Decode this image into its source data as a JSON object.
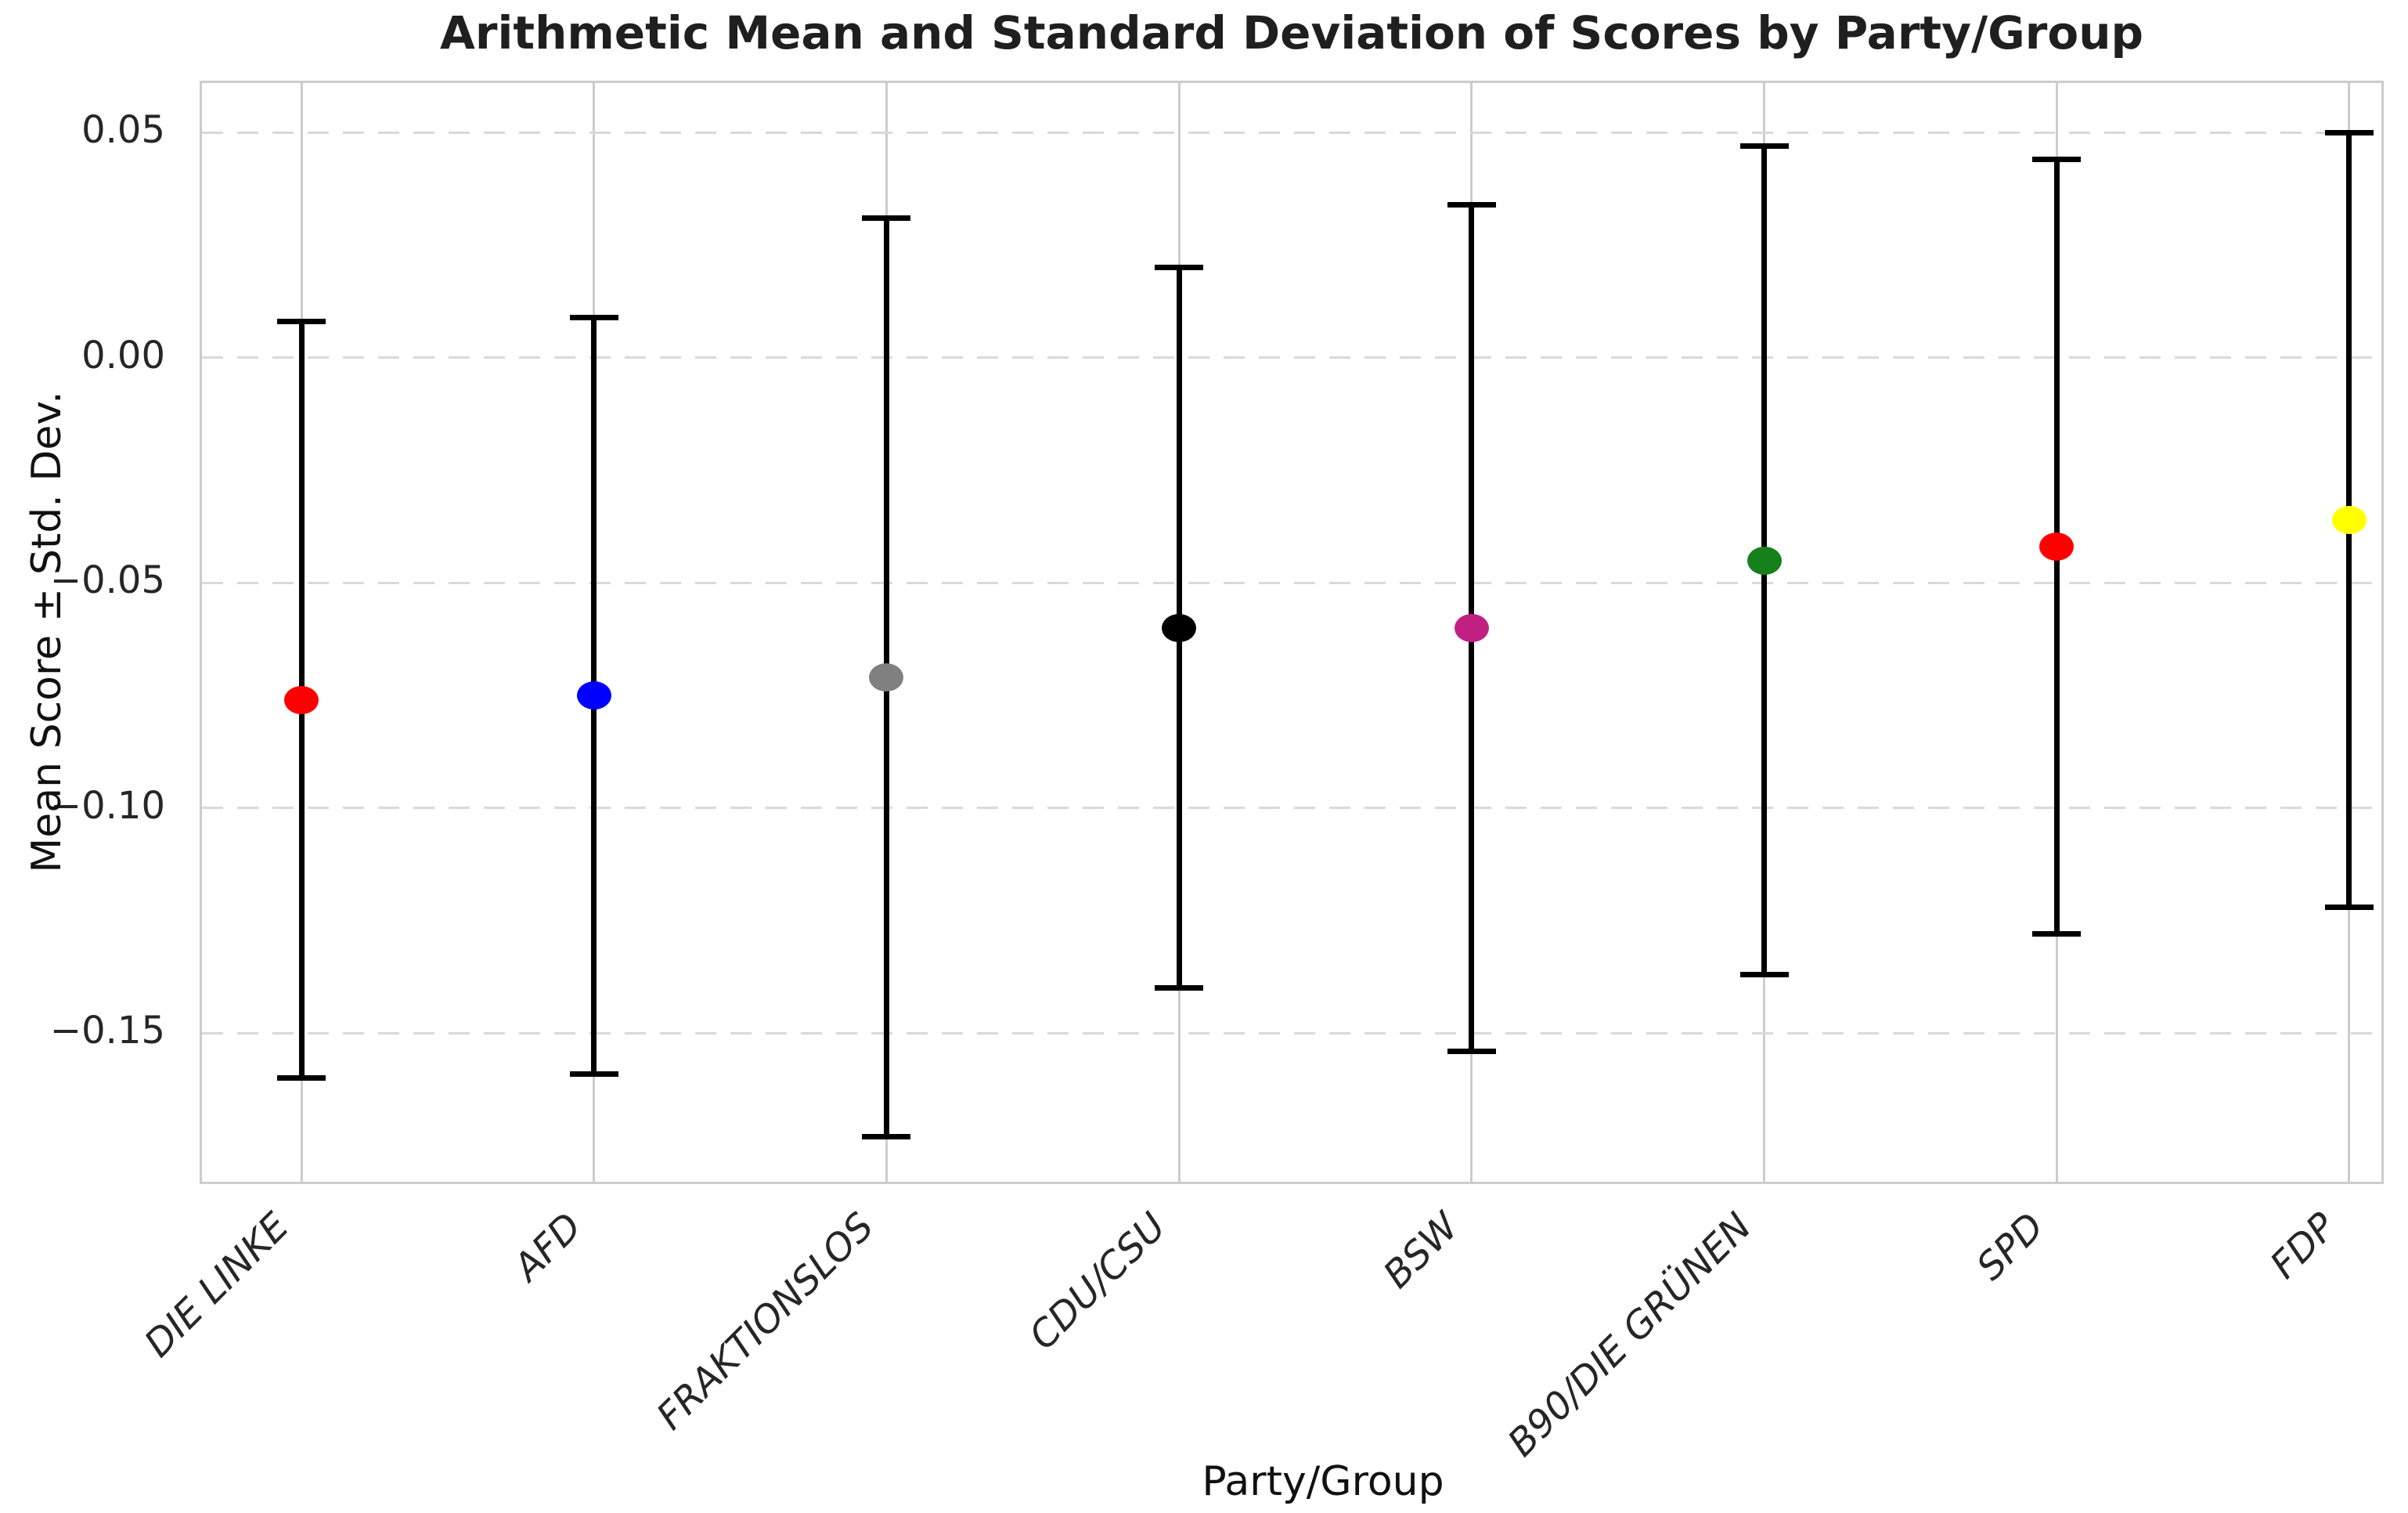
{
  "chart_data": {
    "type": "scatter",
    "subtype": "errorbar",
    "title": "Arithmetic Mean and Standard Deviation of Scores by Party/Group",
    "xlabel": "Party/Group",
    "ylabel": "Mean Score ± Std. Dev.",
    "categories": [
      "DIE LINKE",
      "AFD",
      "FRAKTIONSLOS",
      "CDU/CSU",
      "BSW",
      "B90/DIE GRÜNEN",
      "SPD",
      "FDP"
    ],
    "series": [
      {
        "label": "DIE LINKE",
        "mean": -0.076,
        "std": 0.084,
        "upper": 0.008,
        "lower": -0.16,
        "color": "#ff0000"
      },
      {
        "label": "AFD",
        "mean": -0.075,
        "std": 0.084,
        "upper": 0.009,
        "lower": -0.159,
        "color": "#0000ff"
      },
      {
        "label": "FRAKTIONSLOS",
        "mean": -0.071,
        "std": 0.102,
        "upper": 0.031,
        "lower": -0.173,
        "color": "#808080"
      },
      {
        "label": "CDU/CSU",
        "mean": -0.06,
        "std": 0.08,
        "upper": 0.02,
        "lower": -0.14,
        "color": "#000000"
      },
      {
        "label": "BSW",
        "mean": -0.06,
        "std": 0.094,
        "upper": 0.034,
        "lower": -0.154,
        "color": "#c12083"
      },
      {
        "label": "B90/DIE GRÜNEN",
        "mean": -0.045,
        "std": 0.092,
        "upper": 0.047,
        "lower": -0.137,
        "color": "#16801c"
      },
      {
        "label": "SPD",
        "mean": -0.042,
        "std": 0.086,
        "upper": 0.044,
        "lower": -0.128,
        "color": "#ff0000"
      },
      {
        "label": "FDP",
        "mean": -0.036,
        "std": 0.086,
        "upper": 0.05,
        "lower": -0.122,
        "color": "#ffff00"
      }
    ],
    "yticks": [
      {
        "value": 0.05,
        "label": "0.05"
      },
      {
        "value": 0.0,
        "label": "0.00"
      },
      {
        "value": -0.05,
        "label": "−0.05"
      },
      {
        "value": -0.1,
        "label": "−0.10"
      },
      {
        "value": -0.15,
        "label": "−0.15"
      }
    ],
    "ylim": [
      -0.184,
      0.061
    ],
    "grid": {
      "horizontal": "dashed",
      "vertical": "solid",
      "color": "#cccccc"
    },
    "legend_position": "none",
    "errorbar_color": "#000000",
    "background_color": "#ffffff"
  }
}
